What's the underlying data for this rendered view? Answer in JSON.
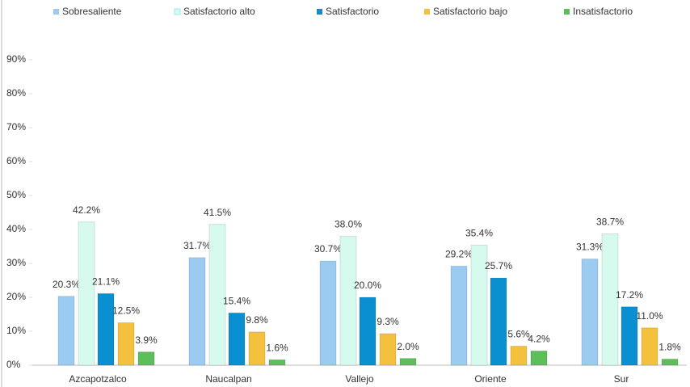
{
  "chart_data": {
    "type": "bar",
    "categories": [
      "Azcapotzalco",
      "Naucalpan",
      "Vallejo",
      "Oriente",
      "Sur"
    ],
    "series": [
      {
        "name": "Sobresaliente",
        "color": "#9ccbf2",
        "values": [
          20.3,
          31.7,
          30.7,
          29.2,
          31.3
        ],
        "value_labels": [
          "20.3%",
          "31.7%",
          "30.7%",
          "29.2%",
          "31.3%"
        ]
      },
      {
        "name": "Satisfactorio alto",
        "color": "#d6fbee",
        "values": [
          42.2,
          41.5,
          38.0,
          35.4,
          38.7
        ],
        "value_labels": [
          "42.2%",
          "41.5%",
          "38.0%",
          "35.4%",
          "38.7%"
        ]
      },
      {
        "name": "Satisfactorio",
        "color": "#0a8fd0",
        "values": [
          21.1,
          15.4,
          20.0,
          25.7,
          17.2
        ],
        "value_labels": [
          "21.1%",
          "15.4%",
          "20.0%",
          "25.7%",
          "17.2%"
        ]
      },
      {
        "name": "Satisfactorio bajo",
        "color": "#f3c13e",
        "values": [
          12.5,
          9.8,
          9.3,
          5.6,
          11.0
        ],
        "value_labels": [
          "12.5%",
          "9.8%",
          "9.3%",
          "5.6%",
          "11.0%"
        ]
      },
      {
        "name": "Insatisfactorio",
        "color": "#5cbf5a",
        "values": [
          3.9,
          1.6,
          2.0,
          4.2,
          1.8
        ],
        "value_labels": [
          "3.9%",
          "1.6%",
          "2.0%",
          "4.2%",
          "1.8%"
        ]
      }
    ],
    "ylim": [
      0,
      90
    ],
    "yticks": [
      {
        "value": 0,
        "label": "0%"
      },
      {
        "value": 10,
        "label": "10%"
      },
      {
        "value": 20,
        "label": "20%"
      },
      {
        "value": 30,
        "label": "30%"
      },
      {
        "value": 40,
        "label": "40%"
      },
      {
        "value": 50,
        "label": "50%"
      },
      {
        "value": 60,
        "label": "60%"
      },
      {
        "value": 70,
        "label": "70%"
      },
      {
        "value": 80,
        "label": "80%"
      },
      {
        "value": 90,
        "label": "90%"
      }
    ],
    "legend": "top"
  }
}
